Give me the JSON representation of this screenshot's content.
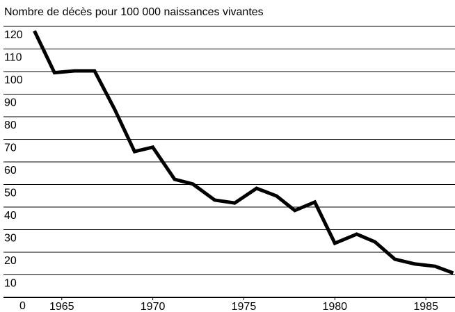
{
  "chart_data": {
    "type": "line",
    "title": "Nombre de décès pour 100 000 naissances vivantes",
    "x": [
      1963.5,
      1964.6,
      1965.7,
      1966.8,
      1967.9,
      1969.0,
      1970.0,
      1971.2,
      1972.2,
      1973.4,
      1974.5,
      1975.7,
      1976.8,
      1977.8,
      1978.9,
      1980.0,
      1981.2,
      1982.2,
      1983.3,
      1984.4,
      1985.5,
      1986.5
    ],
    "series": [
      {
        "color": "#000000",
        "values": [
          118,
          99.5,
          100.3,
          100.3,
          83.4,
          64.6,
          66.5,
          52.3,
          50.2,
          43.1,
          41.8,
          48.3,
          44.9,
          38.5,
          42.2,
          24,
          28,
          24.6,
          16.9,
          14.8,
          13.8,
          10.8
        ]
      }
    ],
    "xlim": [
      1961.8,
      1986.6
    ],
    "xticks": [
      1965,
      1970,
      1975,
      1980,
      1985
    ],
    "ylim": [
      0,
      120
    ],
    "yticks": [
      0,
      10,
      20,
      30,
      40,
      50,
      60,
      70,
      80,
      90,
      100,
      110,
      120
    ],
    "grid": true
  }
}
